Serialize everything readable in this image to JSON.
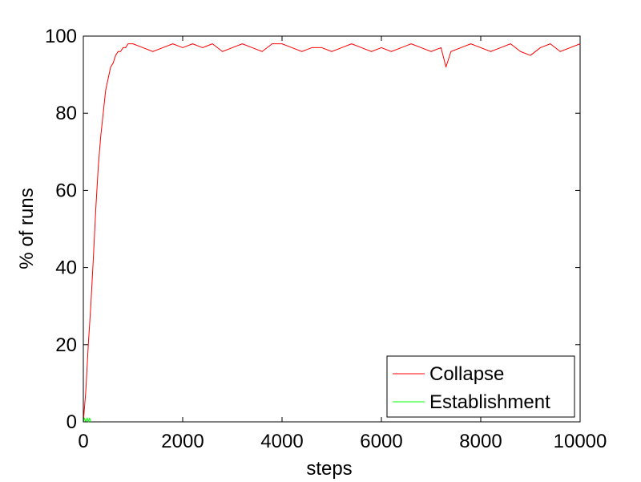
{
  "chart_data": {
    "type": "line",
    "xlabel": "steps",
    "ylabel": "% of runs",
    "xlim": [
      0,
      10000
    ],
    "ylim": [
      0,
      100
    ],
    "xticks": [
      0,
      2000,
      4000,
      6000,
      8000,
      10000
    ],
    "yticks": [
      0,
      20,
      40,
      60,
      80,
      100
    ],
    "grid": false,
    "legend_position": "bottom-right",
    "series": [
      {
        "name": "Collapse",
        "color": "#ff0000",
        "x": [
          0,
          50,
          100,
          150,
          200,
          250,
          300,
          350,
          400,
          450,
          500,
          550,
          600,
          650,
          700,
          750,
          800,
          850,
          900,
          950,
          1000,
          1200,
          1400,
          1600,
          1800,
          2000,
          2200,
          2400,
          2600,
          2800,
          3000,
          3200,
          3400,
          3600,
          3800,
          4000,
          4200,
          4400,
          4600,
          4800,
          5000,
          5200,
          5400,
          5600,
          5800,
          6000,
          6200,
          6400,
          6600,
          6800,
          7000,
          7200,
          7300,
          7400,
          7600,
          7800,
          8000,
          8200,
          8400,
          8600,
          8800,
          9000,
          9200,
          9400,
          9600,
          9800,
          10000
        ],
        "values": [
          0,
          8,
          20,
          30,
          42,
          55,
          66,
          74,
          80,
          86,
          89,
          92,
          93,
          95,
          96,
          96,
          97,
          97,
          98,
          98,
          98,
          97,
          96,
          97,
          98,
          97,
          98,
          97,
          98,
          96,
          97,
          98,
          97,
          96,
          98,
          98,
          97,
          96,
          97,
          97,
          96,
          97,
          98,
          97,
          96,
          97,
          96,
          97,
          98,
          97,
          96,
          97,
          92,
          96,
          97,
          98,
          97,
          96,
          97,
          98,
          96,
          95,
          97,
          98,
          96,
          97,
          98
        ]
      },
      {
        "name": "Establishment",
        "color": "#00ff00",
        "x": [
          0,
          25,
          50,
          75,
          100,
          125,
          150
        ],
        "values": [
          0,
          1,
          0,
          1,
          0,
          1,
          0
        ]
      }
    ]
  }
}
